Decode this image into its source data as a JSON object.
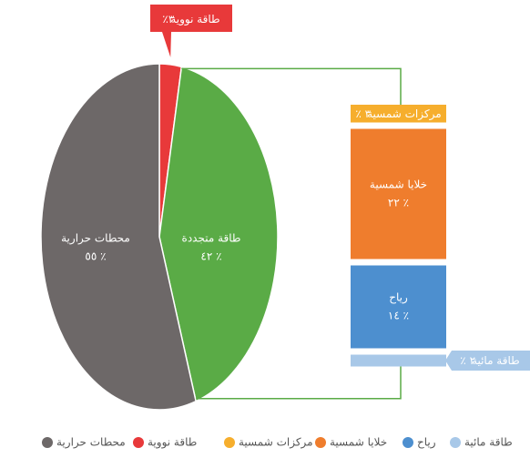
{
  "chart_data": {
    "type": "pie-of-bar",
    "pie": {
      "categories": [
        "طاقة نووية",
        "طاقة متجددة",
        "محطات حرارية"
      ],
      "values": [
        3,
        42,
        55
      ],
      "value_labels": [
        "٣٪",
        "٤٢ ٪",
        "٥٥ ٪"
      ],
      "colors": [
        "#e8393a",
        "#5aab46",
        "#6d6868"
      ]
    },
    "bar": {
      "categories": [
        "مركزات شمسية",
        "خلايا شمسية",
        "رياح",
        "طاقة مائية"
      ],
      "values": [
        3,
        22,
        14,
        2
      ],
      "value_labels": [
        "٣ ٪",
        "٢٢ ٪",
        "١٤ ٪",
        "٢ ٪"
      ],
      "colors": [
        "#f6ae2d",
        "#ef7d2d",
        "#4d8fcf",
        "#a8c8e8"
      ]
    }
  }
}
